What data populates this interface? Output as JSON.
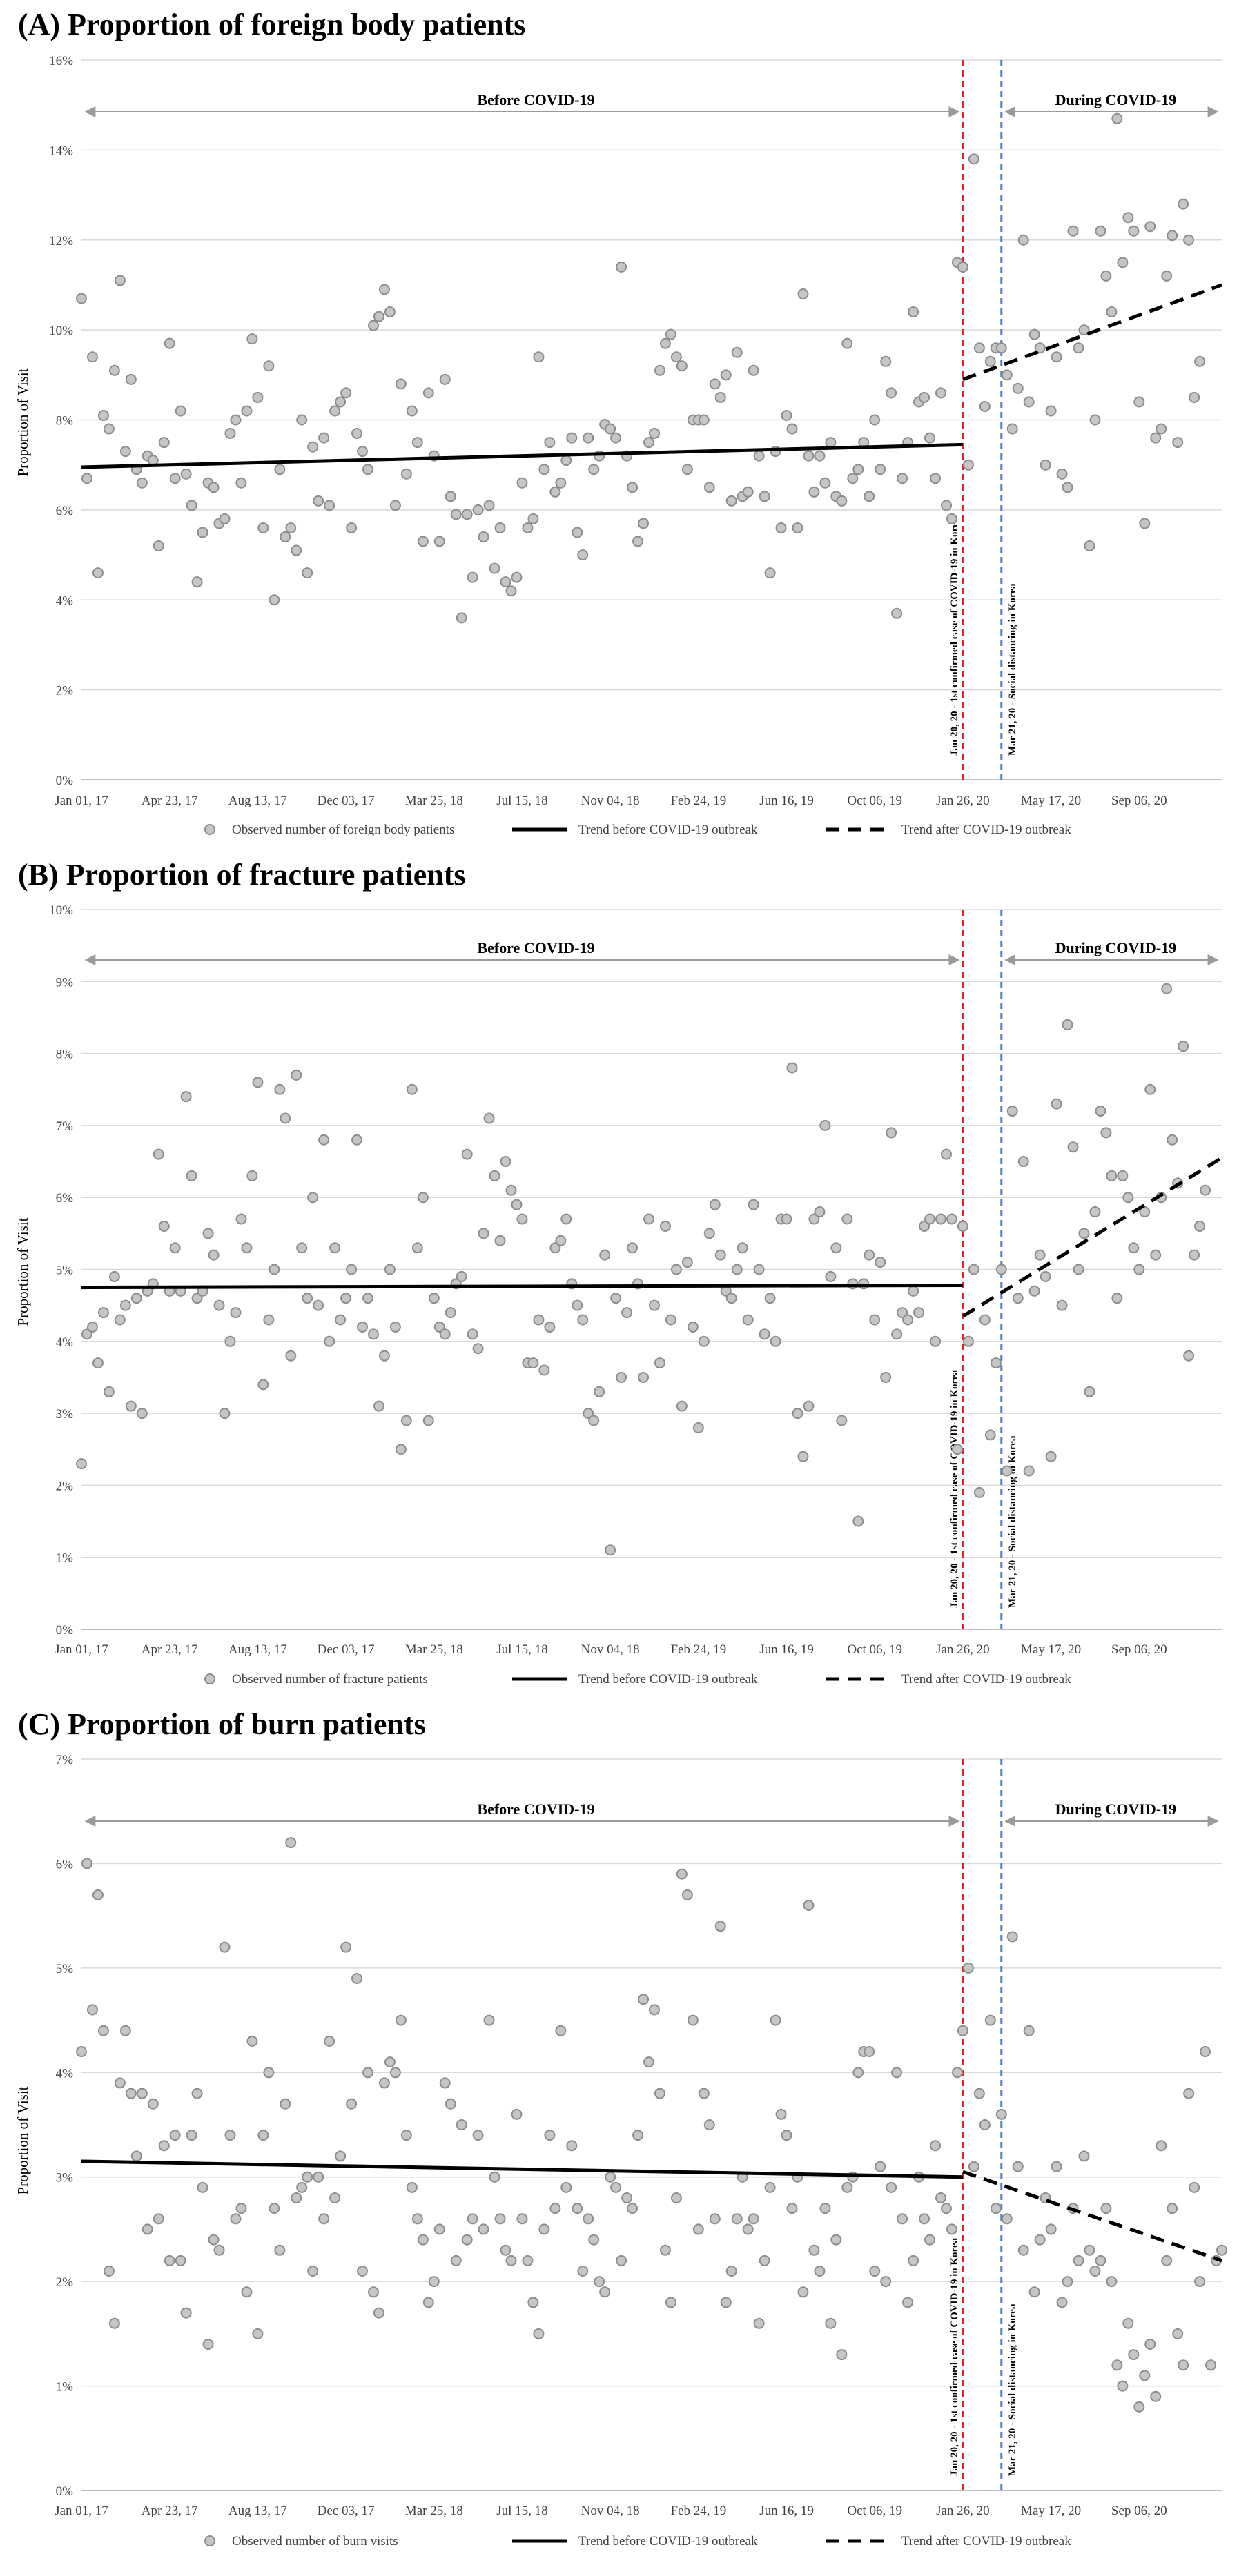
{
  "chart_data": [
    {
      "type": "scatter",
      "title": "(A) Proportion of foreign body patients",
      "ylabel": "Proportion of Visit",
      "ylim": [
        0,
        16
      ],
      "y_ticks": [
        0,
        2,
        4,
        6,
        8,
        10,
        12,
        14,
        16
      ],
      "y_tick_labels": [
        "0%",
        "2%",
        "4%",
        "6%",
        "8%",
        "10%",
        "12%",
        "14%",
        "16%"
      ],
      "x_tick_labels": [
        "Jan 01, 17",
        "Apr 23, 17",
        "Aug 13, 17",
        "Dec 03, 17",
        "Mar 25, 18",
        "Jul 15, 18",
        "Nov 04, 18",
        "Feb 24, 19",
        "Jun 16, 19",
        "Oct 06, 19",
        "Jan 26, 20",
        "May 17, 20",
        "Sep 06, 20"
      ],
      "periods": {
        "before": "Before COVID-19",
        "during": "During COVID-19"
      },
      "events": [
        {
          "week": 160,
          "label": "Jan 20, 20 - 1st confirmed case of COVID-19 in Korea",
          "color": "#e8202a"
        },
        {
          "week": 167,
          "label": "Mar 21, 20 - Social distancing in Korea",
          "color": "#4f7fc4"
        }
      ],
      "trend_before": {
        "name": "Trend before COVID-19 outbreak",
        "x": [
          0,
          160
        ],
        "y": [
          6.95,
          7.45
        ]
      },
      "trend_after": {
        "name": "Trend after COVID-19 outbreak",
        "x": [
          160,
          207
        ],
        "y": [
          8.9,
          11.0
        ]
      },
      "scatter_name": "Observed number of foreign body patients",
      "series": [
        {
          "name": "Observed number of foreign body patients",
          "values": [
            10.7,
            6.7,
            9.4,
            4.6,
            8.1,
            7.8,
            9.1,
            11.1,
            7.3,
            8.9,
            6.9,
            6.6,
            7.2,
            7.1,
            5.2,
            7.5,
            9.7,
            6.7,
            8.2,
            6.8,
            6.1,
            4.4,
            5.5,
            6.6,
            6.5,
            5.7,
            5.8,
            7.7,
            8.0,
            6.6,
            8.2,
            9.8,
            8.5,
            5.6,
            9.2,
            4.0,
            6.9,
            5.4,
            5.6,
            5.1,
            8.0,
            4.6,
            7.4,
            6.2,
            7.6,
            6.1,
            8.2,
            8.4,
            8.6,
            5.6,
            7.7,
            7.3,
            6.9,
            10.1,
            10.3,
            10.9,
            10.4,
            6.1,
            8.8,
            6.8,
            8.2,
            7.5,
            5.3,
            8.6,
            7.2,
            5.3,
            8.9,
            6.3,
            5.9,
            3.6,
            5.9,
            4.5,
            6.0,
            5.4,
            6.1,
            4.7,
            5.6,
            4.4,
            4.2,
            4.5,
            6.6,
            5.6,
            5.8,
            9.4,
            6.9,
            7.5,
            6.4,
            6.6,
            7.1,
            7.6,
            5.5,
            5.0,
            7.6,
            6.9,
            7.2,
            7.9,
            7.8,
            7.6,
            11.4,
            7.2,
            6.5,
            5.3,
            5.7,
            7.5,
            7.7,
            9.1,
            9.7,
            9.9,
            9.4,
            9.2,
            6.9,
            8.0,
            8.0,
            8.0,
            6.5,
            8.8,
            8.5,
            9.0,
            6.2,
            9.5,
            6.3,
            6.4,
            9.1,
            7.2,
            6.3,
            4.6,
            7.3,
            5.6,
            8.1,
            7.8,
            5.6,
            10.8,
            7.2,
            6.4,
            7.2,
            6.6,
            7.5,
            6.3,
            6.2,
            9.7,
            6.7,
            6.9,
            7.5,
            6.3,
            8.0,
            6.9,
            9.3,
            8.6,
            3.7,
            6.7,
            7.5,
            10.4,
            8.4,
            8.5,
            7.6,
            6.7,
            8.6,
            6.1,
            5.8,
            11.5,
            11.4,
            7.0,
            13.8,
            9.6,
            8.3,
            9.3,
            9.6,
            9.6,
            9.0,
            7.8,
            8.7,
            12.0,
            8.4,
            9.9,
            9.6,
            7.0,
            8.2,
            9.4,
            6.8,
            6.5,
            12.2,
            9.6,
            10.0,
            5.2,
            8.0,
            12.2,
            11.2,
            10.4,
            14.7,
            11.5,
            12.5,
            12.2,
            8.4,
            5.7,
            12.3,
            7.6,
            7.8,
            11.2,
            12.1,
            7.5,
            12.8,
            12.0,
            8.5,
            9.3
          ]
        }
      ]
    },
    {
      "type": "scatter",
      "title": "(B) Proportion of fracture patients",
      "ylabel": "Proportion of Visit",
      "ylim": [
        0,
        10
      ],
      "y_ticks": [
        0,
        1,
        2,
        3,
        4,
        5,
        6,
        7,
        8,
        9,
        10
      ],
      "y_tick_labels": [
        "0%",
        "1%",
        "2%",
        "3%",
        "4%",
        "5%",
        "6%",
        "7%",
        "8%",
        "9%",
        "10%"
      ],
      "x_tick_labels": [
        "Jan 01, 17",
        "Apr 23, 17",
        "Aug 13, 17",
        "Dec 03, 17",
        "Mar 25, 18",
        "Jul 15, 18",
        "Nov 04, 18",
        "Feb 24, 19",
        "Jun 16, 19",
        "Oct 06, 19",
        "Jan 26, 20",
        "May 17, 20",
        "Sep 06, 20"
      ],
      "periods": {
        "before": "Before COVID-19",
        "during": "During COVID-19"
      },
      "events": [
        {
          "week": 160,
          "label": "Jan 20, 20 - 1st confirmed case of COVID-19 in Korea",
          "color": "#e8202a"
        },
        {
          "week": 167,
          "label": "Mar 21, 20 - Social distancing in Korea",
          "color": "#4f7fc4"
        }
      ],
      "trend_before": {
        "name": "Trend before COVID-19 outbreak",
        "x": [
          0,
          160
        ],
        "y": [
          4.75,
          4.78
        ]
      },
      "trend_after": {
        "name": "Trend after COVID-19 outbreak",
        "x": [
          160,
          207
        ],
        "y": [
          4.35,
          6.55
        ]
      },
      "scatter_name": "Observed number of fracture patients",
      "series": [
        {
          "name": "Observed number of fracture patients",
          "values": [
            2.3,
            4.1,
            4.2,
            3.7,
            4.4,
            3.3,
            4.9,
            4.3,
            4.5,
            3.1,
            4.6,
            3.0,
            4.7,
            4.8,
            6.6,
            5.6,
            4.7,
            5.3,
            4.7,
            7.4,
            6.3,
            4.6,
            4.7,
            5.5,
            5.2,
            4.5,
            3.0,
            4.0,
            4.4,
            5.7,
            5.3,
            6.3,
            7.6,
            3.4,
            4.3,
            5.0,
            7.5,
            7.1,
            3.8,
            7.7,
            5.3,
            4.6,
            6.0,
            4.5,
            6.8,
            4.0,
            5.3,
            4.3,
            4.6,
            5.0,
            6.8,
            4.2,
            4.6,
            4.1,
            3.1,
            3.8,
            5.0,
            4.2,
            2.5,
            2.9,
            7.5,
            5.3,
            6.0,
            2.9,
            4.6,
            4.2,
            4.1,
            4.4,
            4.8,
            4.9,
            6.6,
            4.1,
            3.9,
            5.5,
            7.1,
            6.3,
            5.4,
            6.5,
            6.1,
            5.9,
            5.7,
            3.7,
            3.7,
            4.3,
            3.6,
            4.2,
            5.3,
            5.4,
            5.7,
            4.8,
            4.5,
            4.3,
            3.0,
            2.9,
            3.3,
            5.2,
            1.1,
            4.6,
            3.5,
            4.4,
            5.3,
            4.8,
            3.5,
            5.7,
            4.5,
            3.7,
            5.6,
            4.3,
            5.0,
            3.1,
            5.1,
            4.2,
            2.8,
            4.0,
            5.5,
            5.9,
            5.2,
            4.7,
            4.6,
            5.0,
            5.3,
            4.3,
            5.9,
            5.0,
            4.1,
            4.6,
            4.0,
            5.7,
            5.7,
            7.8,
            3.0,
            2.4,
            3.1,
            5.7,
            5.8,
            7.0,
            4.9,
            5.3,
            2.9,
            5.7,
            4.8,
            1.5,
            4.8,
            5.2,
            4.3,
            5.1,
            3.5,
            6.9,
            4.1,
            4.4,
            4.3,
            4.7,
            4.4,
            5.6,
            5.7,
            4.0,
            5.7,
            6.6,
            5.7,
            2.5,
            5.6,
            4.0,
            5.0,
            1.9,
            4.3,
            2.7,
            3.7,
            5.0,
            2.2,
            7.2,
            4.6,
            6.5,
            2.2,
            4.7,
            5.2,
            4.9,
            2.4,
            7.3,
            4.5,
            8.4,
            6.7,
            5.0,
            5.5,
            3.3,
            5.8,
            7.2,
            6.9,
            6.3,
            4.6,
            6.3,
            6.0,
            5.3,
            5.0,
            5.8,
            7.5,
            5.2,
            6.0,
            8.9,
            6.8,
            6.2,
            8.1,
            3.8,
            5.2,
            5.6,
            6.1
          ]
        }
      ]
    },
    {
      "type": "scatter",
      "title": "(C) Proportion of burn patients",
      "ylabel": "Proportion of Visit",
      "ylim": [
        0,
        7
      ],
      "y_ticks": [
        0,
        1,
        2,
        3,
        4,
        5,
        6,
        7
      ],
      "y_tick_labels": [
        "0%",
        "1%",
        "2%",
        "3%",
        "4%",
        "5%",
        "6%",
        "7%"
      ],
      "x_tick_labels": [
        "Jan 01, 17",
        "Apr 23, 17",
        "Aug 13, 17",
        "Dec 03, 17",
        "Mar 25, 18",
        "Jul 15, 18",
        "Nov 04, 18",
        "Feb 24, 19",
        "Jun 16, 19",
        "Oct 06, 19",
        "Jan 26, 20",
        "May 17, 20",
        "Sep 06, 20"
      ],
      "periods": {
        "before": "Before COVID-19",
        "during": "During COVID-19"
      },
      "events": [
        {
          "week": 160,
          "label": "Jan 20, 20 - 1st confirmed case of COVID-19 in Korea",
          "color": "#e8202a"
        },
        {
          "week": 167,
          "label": "Mar 21, 20 - Social distancing in Korea",
          "color": "#4f7fc4"
        }
      ],
      "trend_before": {
        "name": "Trend before COVID-19 outbreak",
        "x": [
          0,
          160
        ],
        "y": [
          3.15,
          3.0
        ]
      },
      "trend_after": {
        "name": "Trend after COVID-19 outbreak",
        "x": [
          160,
          207
        ],
        "y": [
          3.05,
          2.2
        ]
      },
      "scatter_name": "Observed number of burn visits",
      "series": [
        {
          "name": "Observed number of burn visits",
          "values": [
            4.2,
            6.0,
            4.6,
            5.7,
            4.4,
            2.1,
            1.6,
            3.9,
            4.4,
            3.8,
            3.2,
            3.8,
            2.5,
            3.7,
            2.6,
            3.3,
            2.2,
            3.4,
            2.2,
            1.7,
            3.4,
            3.8,
            2.9,
            1.4,
            2.4,
            2.3,
            5.2,
            3.4,
            2.6,
            2.7,
            1.9,
            4.3,
            1.5,
            3.4,
            4.0,
            2.7,
            2.3,
            3.7,
            6.2,
            2.8,
            2.9,
            3.0,
            2.1,
            3.0,
            2.6,
            4.3,
            2.8,
            3.2,
            5.2,
            3.7,
            4.9,
            2.1,
            4.0,
            1.9,
            1.7,
            3.9,
            4.1,
            4.0,
            4.5,
            3.4,
            2.9,
            2.6,
            2.4,
            1.8,
            2.0,
            2.5,
            3.9,
            3.7,
            2.2,
            3.5,
            2.4,
            2.6,
            3.4,
            2.5,
            4.5,
            3.0,
            2.6,
            2.3,
            2.2,
            3.6,
            2.6,
            2.2,
            1.8,
            1.5,
            2.5,
            3.4,
            2.7,
            4.4,
            2.9,
            3.3,
            2.7,
            2.1,
            2.6,
            2.4,
            2.0,
            1.9,
            3.0,
            2.9,
            2.2,
            2.8,
            2.7,
            3.4,
            4.7,
            4.1,
            4.6,
            3.8,
            2.3,
            1.8,
            2.8,
            5.9,
            5.7,
            4.5,
            2.5,
            3.8,
            3.5,
            2.6,
            5.4,
            1.8,
            2.1,
            2.6,
            3.0,
            2.5,
            2.6,
            1.6,
            2.2,
            2.9,
            4.5,
            3.6,
            3.4,
            2.7,
            3.0,
            1.9,
            5.6,
            2.3,
            2.1,
            2.7,
            1.6,
            2.4,
            1.3,
            2.9,
            3.0,
            4.0,
            4.2,
            4.2,
            2.1,
            3.1,
            2.0,
            2.9,
            4.0,
            2.6,
            1.8,
            2.2,
            3.0,
            2.6,
            2.4,
            3.3,
            2.8,
            2.7,
            2.5,
            4.0,
            4.4,
            5.0,
            3.1,
            3.8,
            3.5,
            4.5,
            2.7,
            3.6,
            2.6,
            5.3,
            3.1,
            2.3,
            4.4,
            1.9,
            2.4,
            2.8,
            2.5,
            3.1,
            1.8,
            2.0,
            2.7,
            2.2,
            3.2,
            2.3,
            2.1,
            2.2,
            2.7,
            2.0,
            1.2,
            1.0,
            1.6,
            1.3,
            0.8,
            1.1,
            1.4,
            0.9,
            3.3,
            2.2,
            2.7,
            1.5,
            1.2,
            3.8,
            2.9,
            2.0,
            4.2,
            1.2,
            2.2,
            2.3
          ]
        }
      ]
    }
  ]
}
